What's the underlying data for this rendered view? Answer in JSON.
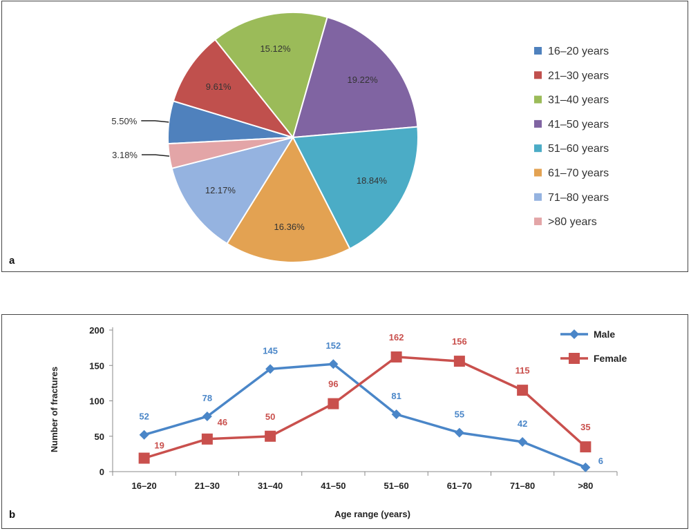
{
  "panels": {
    "a": "a",
    "b": "b"
  },
  "chart_data": [
    {
      "type": "pie",
      "panel": "a",
      "slices": [
        {
          "label": "16–20 years",
          "value": 5.5,
          "text": "5.50%",
          "color": "#4F81BD"
        },
        {
          "label": "21–30 years",
          "value": 9.61,
          "text": "9.61%",
          "color": "#C0504D"
        },
        {
          "label": "31–40 years",
          "value": 15.12,
          "text": "15.12%",
          "color": "#9BBB59"
        },
        {
          "label": "41–50 years",
          "value": 19.22,
          "text": "19.22%",
          "color": "#8064A2"
        },
        {
          "label": "51–60 years",
          "value": 18.84,
          "text": "18.84%",
          "color": "#4BACC6"
        },
        {
          "label": "61–70 years",
          "value": 16.36,
          "text": "16.36%",
          "color": "#E3A252"
        },
        {
          "label": "71–80 years",
          "value": 12.17,
          "text": "12.17%",
          "color": "#95B3E0"
        },
        {
          "label": ">80 years",
          "value": 3.18,
          "text": "3.18%",
          "color": "#E3A5A7"
        }
      ],
      "legend_position": "right"
    },
    {
      "type": "line",
      "panel": "b",
      "categories": [
        "16–20",
        "21–30",
        "31–40",
        "41–50",
        "51–60",
        "61–70",
        "71–80",
        ">80"
      ],
      "series": [
        {
          "name": "Male",
          "values": [
            52,
            78,
            145,
            152,
            81,
            55,
            42,
            6
          ],
          "color": "#4A86C8",
          "marker": "diamond"
        },
        {
          "name": "Female",
          "values": [
            19,
            46,
            50,
            96,
            162,
            156,
            115,
            35
          ],
          "color": "#C9504D",
          "marker": "square"
        }
      ],
      "xlabel": "Age range (years)",
      "ylabel": "Number of fractures",
      "ylim": [
        0,
        200
      ],
      "yticks": [
        0,
        50,
        100,
        150,
        200
      ],
      "legend_position": "top-right"
    }
  ]
}
